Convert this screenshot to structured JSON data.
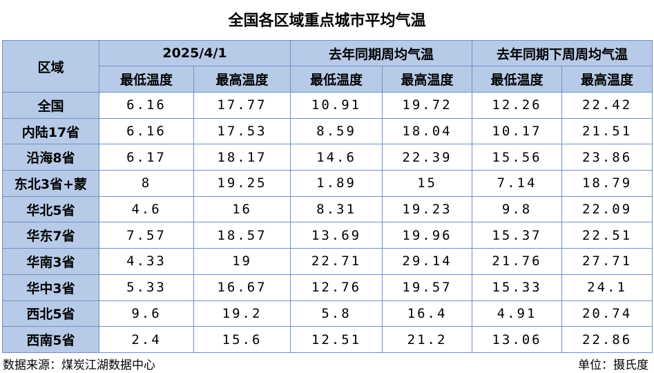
{
  "title": "全国各区域重点城市平均气温",
  "table": {
    "corner": "区域",
    "groups": [
      {
        "name": "2025/4/1",
        "columns": [
          "最低温度",
          "最高温度"
        ]
      },
      {
        "name": "去年同期周均气温",
        "columns": [
          "最低温度",
          "最高温度"
        ]
      },
      {
        "name": "去年同期下周周均气温",
        "columns": [
          "最低温度",
          "最高温度"
        ]
      }
    ],
    "rows": [
      [
        "全国",
        6.16,
        17.77,
        10.91,
        19.72,
        12.26,
        22.42
      ],
      [
        "内陆17省",
        6.16,
        17.53,
        8.59,
        18.04,
        10.17,
        21.51
      ],
      [
        "沿海8省",
        6.17,
        18.17,
        14.6,
        22.39,
        15.56,
        23.86
      ],
      [
        "东北3省+蒙",
        8,
        19.25,
        1.89,
        15,
        7.14,
        18.79
      ],
      [
        "华北5省",
        4.6,
        16,
        8.31,
        19.23,
        9.8,
        22.09
      ],
      [
        "华东7省",
        7.57,
        18.57,
        13.69,
        19.96,
        15.37,
        22.51
      ],
      [
        "华南3省",
        4.33,
        19,
        22.71,
        29.14,
        21.76,
        27.71
      ],
      [
        "华中3省",
        5.33,
        16.67,
        12.76,
        19.57,
        15.33,
        24.1
      ],
      [
        "西北5省",
        9.6,
        19.2,
        5.8,
        16.4,
        4.91,
        20.74
      ],
      [
        "西南5省",
        2.4,
        15.6,
        12.51,
        21.2,
        13.06,
        22.86
      ]
    ]
  },
  "footer": {
    "source": "数据来源：煤炭江湖数据中心",
    "unit": "单位：摄氏度"
  }
}
